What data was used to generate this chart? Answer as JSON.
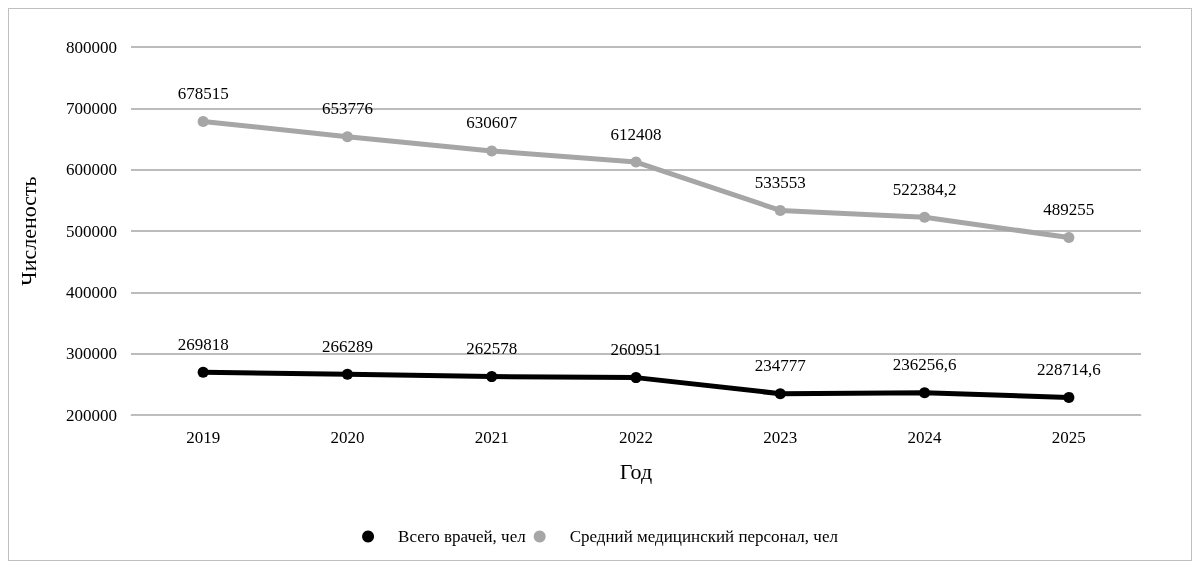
{
  "chart_data": {
    "type": "line",
    "xlabel": "Год",
    "ylabel": "Численость",
    "categories": [
      "2019",
      "2020",
      "2021",
      "2022",
      "2023",
      "2024",
      "2025"
    ],
    "series": [
      {
        "name": "Всего врачей, чел",
        "color": "#000000",
        "values": [
          269818,
          266289,
          262578,
          260951,
          234777,
          236256.6,
          228714.6
        ],
        "value_labels": [
          "269818",
          "266289",
          "262578",
          "260951",
          "234777",
          "236256,6",
          "228714,6"
        ]
      },
      {
        "name": "Средний медицинский персонал, чел",
        "color": "#a6a6a6",
        "values": [
          678515,
          653776,
          630607,
          612408,
          533553,
          522384.2,
          489255
        ],
        "value_labels": [
          "678515",
          "653776",
          "630607",
          "612408",
          "533553",
          "522384,2",
          "489255"
        ]
      }
    ],
    "ylim": [
      200000,
      800000
    ],
    "yticks": [
      200000,
      300000,
      400000,
      500000,
      600000,
      700000,
      800000
    ],
    "grid": "y",
    "legend": "bottom",
    "marker": "circle",
    "line_style": "solid"
  }
}
